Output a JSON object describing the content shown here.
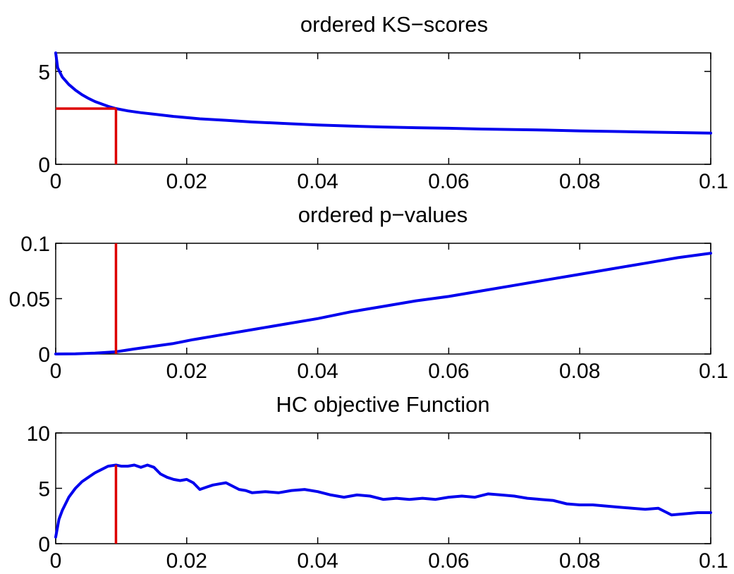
{
  "chart_data": [
    {
      "type": "line",
      "title": "ordered KS−scores",
      "xlabel": "",
      "ylabel": "",
      "xlim": [
        0,
        0.1
      ],
      "ylim": [
        0,
        6
      ],
      "grid": false,
      "x_ticks": [
        0,
        0.02,
        0.04,
        0.06,
        0.08,
        0.1
      ],
      "x_tick_labels": [
        "0",
        "0.02",
        "0.04",
        "0.06",
        "0.08",
        "0.1"
      ],
      "y_ticks": [
        0,
        5
      ],
      "y_tick_labels": [
        "0",
        "5"
      ],
      "series_color": "#0000ee",
      "marker_color": "#dd0000",
      "series": [
        {
          "x": [
            0,
            0.0003,
            0.001,
            0.002,
            0.003,
            0.004,
            0.005,
            0.006,
            0.007,
            0.008,
            0.0092,
            0.011,
            0.013,
            0.015,
            0.018,
            0.022,
            0.026,
            0.03,
            0.035,
            0.04,
            0.045,
            0.05,
            0.055,
            0.06,
            0.065,
            0.07,
            0.075,
            0.08,
            0.085,
            0.09,
            0.095,
            0.1
          ],
          "y": [
            6.0,
            5.2,
            4.7,
            4.3,
            4.0,
            3.75,
            3.55,
            3.38,
            3.25,
            3.12,
            3.0,
            2.88,
            2.78,
            2.7,
            2.58,
            2.45,
            2.37,
            2.28,
            2.2,
            2.12,
            2.06,
            2.01,
            1.97,
            1.94,
            1.9,
            1.87,
            1.84,
            1.8,
            1.77,
            1.74,
            1.71,
            1.68
          ]
        }
      ],
      "marker": {
        "x": 0.0092,
        "y": 3.0,
        "style": "corner"
      }
    },
    {
      "type": "line",
      "title": "ordered p−values",
      "xlabel": "",
      "ylabel": "",
      "xlim": [
        0,
        0.1
      ],
      "ylim": [
        0,
        0.1
      ],
      "grid": false,
      "x_ticks": [
        0,
        0.02,
        0.04,
        0.06,
        0.08,
        0.1
      ],
      "x_tick_labels": [
        "0",
        "0.02",
        "0.04",
        "0.06",
        "0.08",
        "0.1"
      ],
      "y_ticks": [
        0,
        0.05,
        0.1
      ],
      "y_tick_labels": [
        "0",
        "0.05",
        "0.1"
      ],
      "series_color": "#0000ee",
      "marker_color": "#dd0000",
      "series": [
        {
          "x": [
            0,
            0.003,
            0.006,
            0.0092,
            0.012,
            0.015,
            0.018,
            0.021,
            0.025,
            0.03,
            0.035,
            0.04,
            0.045,
            0.05,
            0.055,
            0.06,
            0.065,
            0.07,
            0.075,
            0.08,
            0.085,
            0.09,
            0.095,
            0.1
          ],
          "y": [
            0,
            0.0002,
            0.0008,
            0.002,
            0.0045,
            0.007,
            0.0095,
            0.013,
            0.017,
            0.022,
            0.027,
            0.032,
            0.038,
            0.043,
            0.048,
            0.052,
            0.057,
            0.062,
            0.067,
            0.072,
            0.077,
            0.082,
            0.087,
            0.091
          ]
        }
      ],
      "marker": {
        "x": 0.0092,
        "y": 0.1,
        "style": "vertical"
      }
    },
    {
      "type": "line",
      "title": "HC objective Function",
      "xlabel": "",
      "ylabel": "",
      "xlim": [
        0,
        0.1
      ],
      "ylim": [
        0,
        10
      ],
      "grid": false,
      "x_ticks": [
        0,
        0.02,
        0.04,
        0.06,
        0.08,
        0.1
      ],
      "x_tick_labels": [
        "0",
        "0.02",
        "0.04",
        "0.06",
        "0.08",
        "0.1"
      ],
      "y_ticks": [
        0,
        5,
        10
      ],
      "y_tick_labels": [
        "0",
        "5",
        "10"
      ],
      "series_color": "#0000ee",
      "marker_color": "#dd0000",
      "series": [
        {
          "x": [
            0,
            0.0005,
            0.001,
            0.002,
            0.003,
            0.004,
            0.005,
            0.006,
            0.007,
            0.008,
            0.0092,
            0.01,
            0.011,
            0.012,
            0.013,
            0.014,
            0.015,
            0.016,
            0.017,
            0.018,
            0.019,
            0.02,
            0.021,
            0.022,
            0.023,
            0.024,
            0.025,
            0.026,
            0.027,
            0.028,
            0.029,
            0.03,
            0.032,
            0.034,
            0.036,
            0.038,
            0.04,
            0.042,
            0.044,
            0.046,
            0.048,
            0.05,
            0.052,
            0.054,
            0.056,
            0.058,
            0.06,
            0.062,
            0.064,
            0.066,
            0.068,
            0.07,
            0.072,
            0.074,
            0.076,
            0.078,
            0.08,
            0.082,
            0.084,
            0.086,
            0.088,
            0.09,
            0.092,
            0.093,
            0.094,
            0.096,
            0.098,
            0.1
          ],
          "y": [
            0.6,
            2.2,
            3.0,
            4.2,
            5.0,
            5.6,
            6.0,
            6.4,
            6.7,
            7.0,
            7.1,
            7.0,
            7.0,
            7.1,
            6.9,
            7.1,
            6.9,
            6.3,
            6.0,
            5.8,
            5.7,
            5.8,
            5.5,
            4.9,
            5.1,
            5.3,
            5.4,
            5.5,
            5.2,
            4.9,
            4.8,
            4.6,
            4.7,
            4.6,
            4.8,
            4.9,
            4.7,
            4.4,
            4.2,
            4.4,
            4.3,
            4.0,
            4.1,
            4.0,
            4.1,
            4.0,
            4.2,
            4.3,
            4.2,
            4.5,
            4.4,
            4.3,
            4.1,
            4.0,
            3.9,
            3.6,
            3.5,
            3.5,
            3.4,
            3.3,
            3.2,
            3.1,
            3.2,
            2.9,
            2.6,
            2.7,
            2.8,
            2.8
          ]
        }
      ],
      "marker": {
        "x": 0.0092,
        "y": 7.1,
        "style": "vertical"
      }
    }
  ]
}
